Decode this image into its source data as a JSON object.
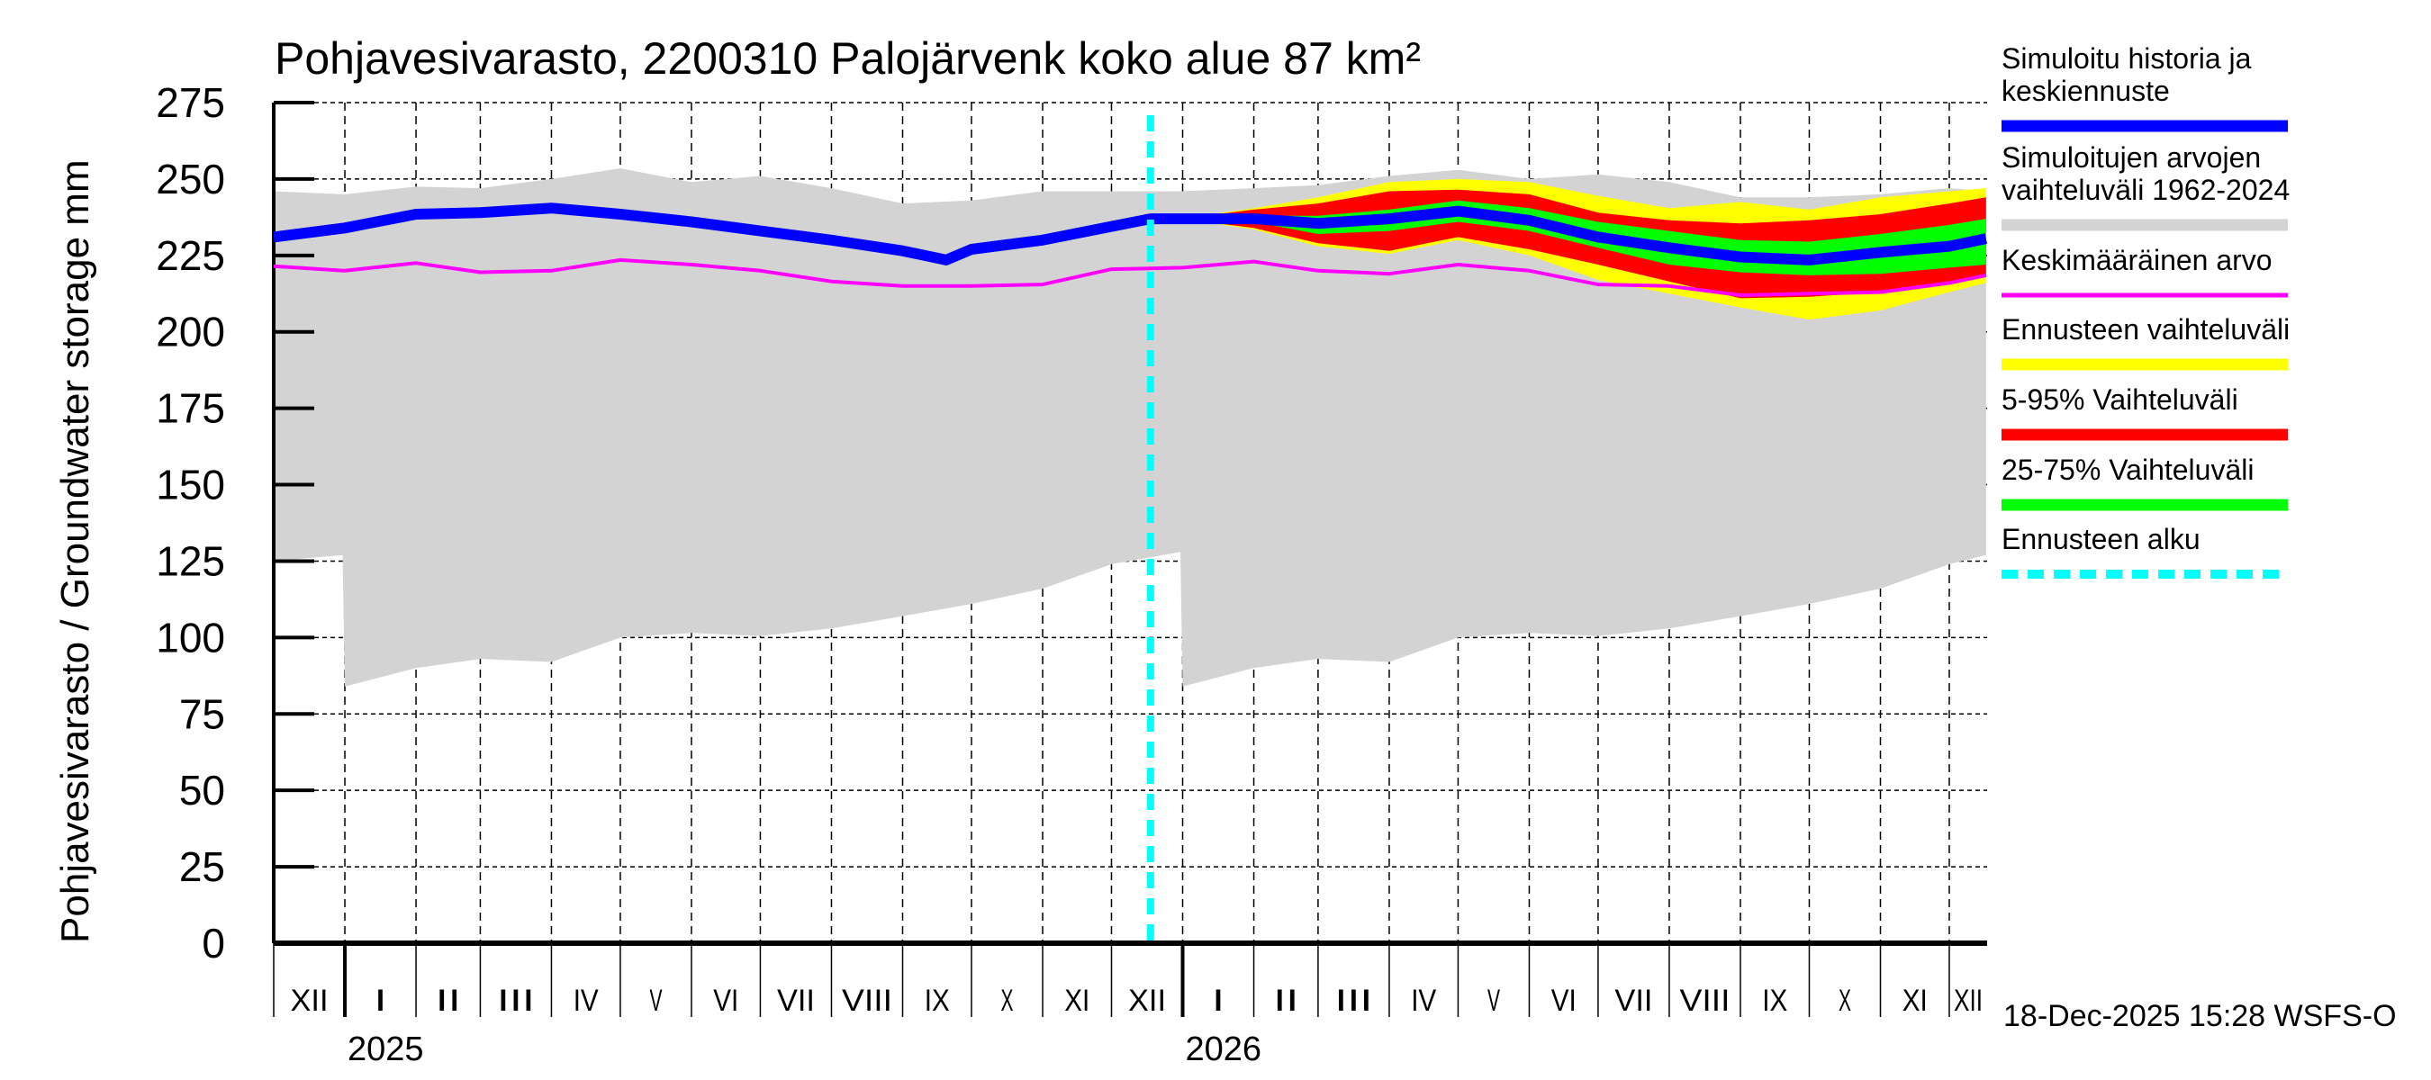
{
  "chart_data": {
    "type": "area",
    "title": "Pohjavesivarasto, 2200310 Palojärvenk koko alue 87 km²",
    "ylabel": "Pohjavesivarasto / Groundwater storage   mm",
    "xlabel": "",
    "ylim": [
      0,
      275
    ],
    "yticks": [
      0,
      25,
      50,
      75,
      100,
      125,
      150,
      175,
      200,
      225,
      250,
      275
    ],
    "xlim": [
      "2024-12-01",
      "2026-12-17"
    ],
    "grid": true,
    "legend_position": "right",
    "month_labels": [
      "XII",
      "I",
      "II",
      "III",
      "IV",
      "V",
      "VI",
      "VII",
      "VIII",
      "IX",
      "X",
      "XI",
      "XII",
      "I",
      "II",
      "III",
      "IV",
      "V",
      "VI",
      "VII",
      "VIII",
      "IX",
      "X",
      "XI",
      "XII"
    ],
    "year_labels": [
      {
        "label": "2025",
        "date": "2025-01-01"
      },
      {
        "label": "2026",
        "date": "2026-01-01"
      }
    ],
    "forecast_start": "2025-12-18",
    "timestamp": "18-Dec-2025 15:28 WSFS-O",
    "legend": [
      {
        "label": "Simuloitu historia ja keskiennuste",
        "color": "#0000ff",
        "style": "thick"
      },
      {
        "label": "Simuloitujen arvojen vaihteluväli 1962-2024",
        "color": "#d3d3d3",
        "style": "thick"
      },
      {
        "label": "Keskimääräinen arvo",
        "color": "#ff00ff",
        "style": "thin"
      },
      {
        "label": "Ennusteen vaihteluväli",
        "color": "#ffff00",
        "style": "thick"
      },
      {
        "label": "5-95% Vaihteluväli",
        "color": "#ff0000",
        "style": "thick"
      },
      {
        "label": "25-75% Vaihteluväli",
        "color": "#00ff00",
        "style": "thick"
      },
      {
        "label": "Ennusteen alku",
        "color": "#00ffff",
        "style": "dashed"
      }
    ],
    "series": [
      {
        "name": "Simuloitujen arvojen vaihteluväli 1962-2024",
        "type": "band",
        "color": "#d3d3d3",
        "x": [
          "2024-12-01",
          "2024-12-31",
          "2025-01-01",
          "2025-02-01",
          "2025-03-01",
          "2025-04-01",
          "2025-05-01",
          "2025-06-01",
          "2025-07-01",
          "2025-08-01",
          "2025-09-01",
          "2025-10-01",
          "2025-11-01",
          "2025-12-01",
          "2025-12-31",
          "2026-01-01",
          "2026-02-01",
          "2026-03-01",
          "2026-04-01",
          "2026-05-01",
          "2026-06-01",
          "2026-07-01",
          "2026-08-01",
          "2026-09-01",
          "2026-10-01",
          "2026-11-01",
          "2026-12-01",
          "2026-12-17"
        ],
        "upper": [
          246,
          245,
          245,
          247.5,
          247,
          250,
          253.5,
          249,
          251,
          247,
          242,
          243,
          246,
          246,
          246,
          246,
          247,
          248,
          251,
          253,
          250,
          251.5,
          249,
          244,
          244,
          245,
          247,
          246
        ],
        "lower": [
          125,
          127,
          84,
          90,
          93,
          92,
          100,
          101.5,
          100.5,
          103,
          107,
          111,
          116,
          124,
          128,
          84,
          90,
          93,
          92,
          100,
          101.5,
          100.5,
          103,
          107,
          111,
          116,
          124,
          127
        ]
      },
      {
        "name": "Ennusteen vaihteluväli",
        "type": "band",
        "color": "#ffff00",
        "x": [
          "2025-12-31",
          "2026-02-01",
          "2026-03-01",
          "2026-04-01",
          "2026-05-01",
          "2026-06-01",
          "2026-07-01",
          "2026-08-01",
          "2026-09-01",
          "2026-10-01",
          "2026-11-01",
          "2026-12-01",
          "2026-12-17"
        ],
        "upper": [
          237,
          240.5,
          244,
          249,
          250,
          249,
          244.5,
          240.5,
          242.5,
          240,
          244,
          246,
          247
        ],
        "lower": [
          237,
          233.5,
          228,
          225.5,
          230,
          225,
          217,
          212.5,
          208,
          204,
          207,
          213,
          216
        ]
      },
      {
        "name": "5-95% Vaihteluväli",
        "type": "band",
        "color": "#ff0000",
        "x": [
          "2025-12-31",
          "2026-02-01",
          "2026-03-01",
          "2026-04-01",
          "2026-05-01",
          "2026-06-01",
          "2026-07-01",
          "2026-08-01",
          "2026-09-01",
          "2026-10-01",
          "2026-11-01",
          "2026-12-01",
          "2026-12-17"
        ],
        "upper": [
          237,
          240,
          242,
          246,
          246.5,
          245,
          239,
          236.5,
          235.5,
          236.5,
          238.5,
          242,
          244
        ],
        "lower": [
          237,
          234,
          229,
          226.5,
          231,
          227,
          222,
          216.5,
          211,
          211.5,
          213,
          216,
          218
        ]
      },
      {
        "name": "25-75% Vaihteluväli",
        "type": "band",
        "color": "#00ff00",
        "x": [
          "2025-12-31",
          "2026-02-01",
          "2026-03-01",
          "2026-04-01",
          "2026-05-01",
          "2026-06-01",
          "2026-07-01",
          "2026-08-01",
          "2026-09-01",
          "2026-10-01",
          "2026-11-01",
          "2026-12-01",
          "2026-12-17"
        ],
        "upper": [
          237,
          238,
          238,
          240,
          243,
          240.5,
          236,
          233,
          230,
          229.5,
          232,
          235,
          237
        ],
        "lower": [
          237,
          236,
          232,
          233,
          236,
          233,
          227.5,
          222,
          219.5,
          218.5,
          219,
          221,
          222
        ]
      },
      {
        "name": "Keskimääräinen arvo",
        "type": "line",
        "color": "#ff00ff",
        "x": [
          "2024-12-01",
          "2025-01-01",
          "2025-02-01",
          "2025-03-01",
          "2025-04-01",
          "2025-05-01",
          "2025-06-01",
          "2025-07-01",
          "2025-08-01",
          "2025-09-01",
          "2025-10-01",
          "2025-11-01",
          "2025-12-01",
          "2026-01-01",
          "2026-02-01",
          "2026-03-01",
          "2026-04-01",
          "2026-05-01",
          "2026-06-01",
          "2026-07-01",
          "2026-08-01",
          "2026-09-01",
          "2026-10-01",
          "2026-11-01",
          "2026-12-01",
          "2026-12-17"
        ],
        "values": [
          221.5,
          220,
          222.5,
          219.5,
          220,
          223.5,
          222,
          220,
          216.5,
          215,
          215,
          215.5,
          220.5,
          221,
          223,
          220,
          219,
          222,
          220,
          215.5,
          215,
          212,
          212.5,
          213,
          216,
          218.5
        ]
      },
      {
        "name": "Simuloitu historia ja keskiennuste",
        "type": "line",
        "color": "#0000ff",
        "x": [
          "2024-12-01",
          "2025-01-01",
          "2025-02-01",
          "2025-03-01",
          "2025-04-01",
          "2025-05-01",
          "2025-06-01",
          "2025-07-01",
          "2025-08-01",
          "2025-09-01",
          "2025-09-20",
          "2025-10-01",
          "2025-11-01",
          "2025-12-01",
          "2025-12-18",
          "2026-01-01",
          "2026-02-01",
          "2026-03-01",
          "2026-04-01",
          "2026-05-01",
          "2026-06-01",
          "2026-07-01",
          "2026-08-01",
          "2026-09-01",
          "2026-10-01",
          "2026-11-01",
          "2026-12-01",
          "2026-12-17"
        ],
        "values": [
          231,
          234,
          238.5,
          239,
          240.5,
          238.5,
          236,
          233,
          230,
          226.5,
          223.5,
          227,
          230,
          234.5,
          237,
          237,
          237,
          235.5,
          237,
          239.5,
          236.5,
          231,
          227.5,
          224.5,
          223.5,
          226,
          228,
          230.5
        ]
      }
    ]
  }
}
